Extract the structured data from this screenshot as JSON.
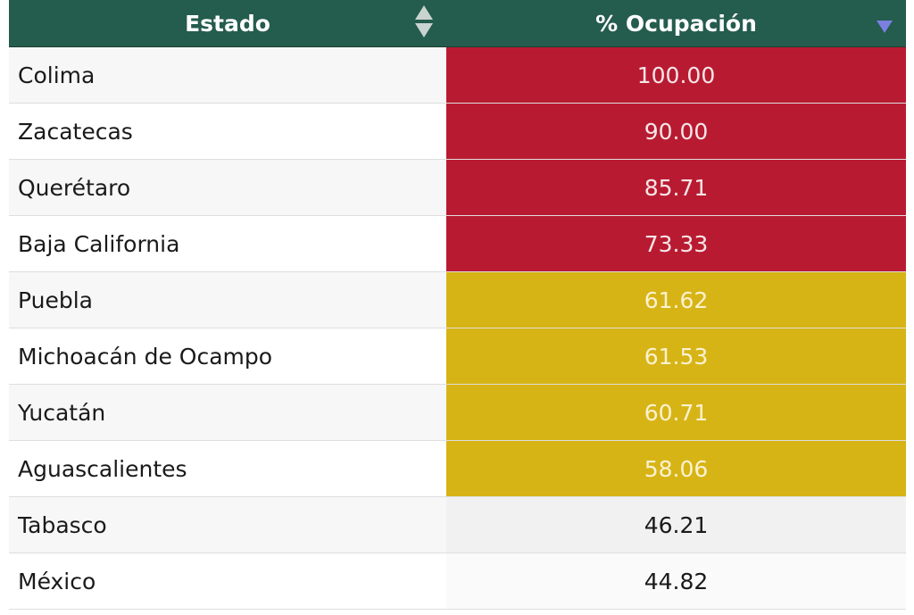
{
  "table": {
    "columns": [
      {
        "label": "Estado",
        "sort": "both"
      },
      {
        "label": "% Ocupación",
        "sort": "desc"
      }
    ],
    "colors": {
      "header": "#245c4d",
      "red": "#b81b31",
      "yellow": "#d7b416",
      "sort_desc_icon": "#7b7fe0"
    },
    "rows": [
      {
        "estado": "Colima",
        "ocupacion": "100.00",
        "level": "red"
      },
      {
        "estado": "Zacatecas",
        "ocupacion": "90.00",
        "level": "red"
      },
      {
        "estado": "Querétaro",
        "ocupacion": "85.71",
        "level": "red"
      },
      {
        "estado": "Baja California",
        "ocupacion": "73.33",
        "level": "red"
      },
      {
        "estado": "Puebla",
        "ocupacion": "61.62",
        "level": "yellow"
      },
      {
        "estado": "Michoacán de Ocampo",
        "ocupacion": "61.53",
        "level": "yellow"
      },
      {
        "estado": "Yucatán",
        "ocupacion": "60.71",
        "level": "yellow"
      },
      {
        "estado": "Aguascalientes",
        "ocupacion": "58.06",
        "level": "yellow"
      },
      {
        "estado": "Tabasco",
        "ocupacion": "46.21",
        "level": "none"
      },
      {
        "estado": "México",
        "ocupacion": "44.82",
        "level": "none"
      }
    ]
  }
}
